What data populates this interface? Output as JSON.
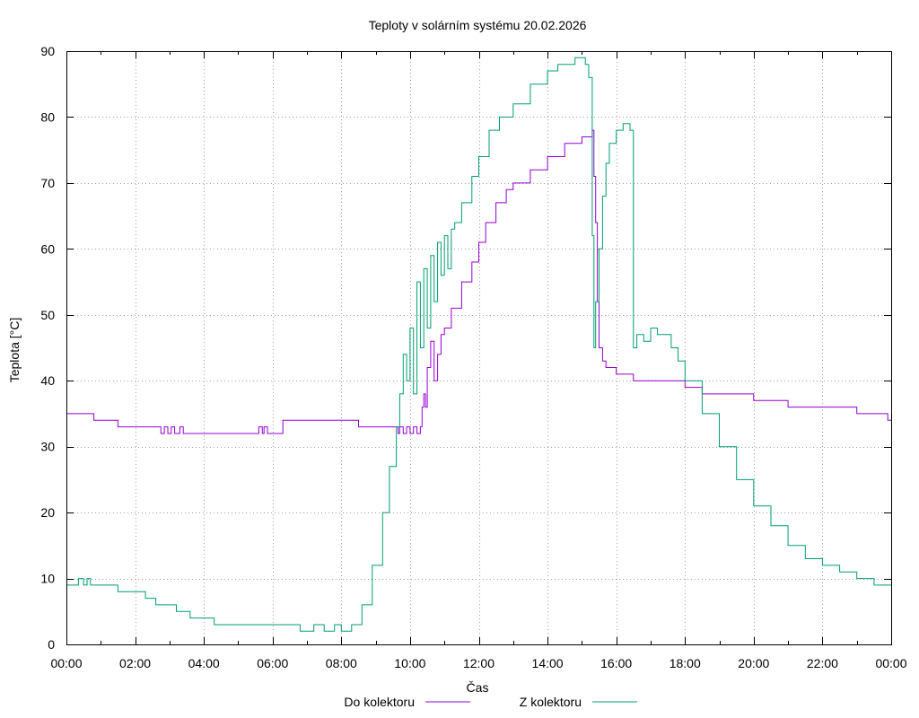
{
  "chart_data": {
    "type": "line",
    "title": "Teploty v solárním systému 20.02.2026",
    "xlabel": "Čas",
    "ylabel": "Teplota [°C]",
    "xlim": [
      0,
      24
    ],
    "ylim": [
      0,
      90
    ],
    "grid": true,
    "legend_position": "bottom-center",
    "xticks": [
      0,
      2,
      4,
      6,
      8,
      10,
      12,
      14,
      16,
      18,
      20,
      22,
      24
    ],
    "xtick_labels": [
      "00:00",
      "02:00",
      "04:00",
      "06:00",
      "08:00",
      "10:00",
      "12:00",
      "14:00",
      "16:00",
      "18:00",
      "20:00",
      "22:00",
      "00:00"
    ],
    "yticks": [
      0,
      10,
      20,
      30,
      40,
      50,
      60,
      70,
      80,
      90
    ],
    "ytick_labels": [
      "0",
      "10",
      "20",
      "30",
      "40",
      "50",
      "60",
      "70",
      "80",
      "90"
    ],
    "series": [
      {
        "name": "Do kolektoru",
        "color": "#9400d3",
        "x": [
          0,
          0.8,
          0.8,
          1.5,
          1.5,
          2.6,
          2.75,
          2.85,
          2.95,
          3.05,
          3.15,
          3.3,
          3.4,
          3.4,
          5.5,
          5.6,
          5.7,
          5.75,
          5.85,
          6.3,
          6.3,
          8.5,
          8.5,
          9.6,
          9.65,
          9.7,
          9.8,
          9.9,
          10.0,
          10.1,
          10.2,
          10.3,
          10.35,
          10.4,
          10.45,
          10.5,
          10.6,
          10.7,
          10.8,
          10.9,
          11.0,
          11.2,
          11.5,
          11.8,
          12.0,
          12.2,
          12.5,
          12.8,
          13.0,
          13.5,
          14.0,
          14.5,
          15.0,
          15.3,
          15.35,
          15.4,
          15.45,
          15.5,
          15.6,
          15.7,
          16.0,
          16.5,
          17.0,
          17.5,
          18.0,
          18.5,
          19.0,
          20.0,
          20.5,
          21.0,
          22.0,
          23.0,
          23.9,
          24.0
        ],
        "values": [
          35,
          35,
          34,
          34,
          33,
          33,
          32,
          33,
          32,
          33,
          32,
          33,
          33,
          32,
          32,
          33,
          32,
          33,
          32,
          33,
          34,
          34,
          33,
          33,
          32,
          33,
          32,
          33,
          32,
          33,
          32,
          33,
          36,
          38,
          36,
          42,
          46,
          40,
          44,
          47,
          48,
          51,
          55,
          58,
          61,
          64,
          67,
          69,
          70,
          72,
          74,
          76,
          77,
          78,
          71,
          64,
          52,
          45,
          43,
          42,
          41,
          40,
          40,
          40,
          39,
          38,
          38,
          37,
          37,
          36,
          36,
          35,
          34,
          34
        ]
      },
      {
        "name": "Z kolektoru",
        "color": "#009e73",
        "x": [
          0,
          0.3,
          0.35,
          0.5,
          0.6,
          0.7,
          0.8,
          1.5,
          1.5,
          2.3,
          2.3,
          2.6,
          2.6,
          3.2,
          3.2,
          3.6,
          3.6,
          4.3,
          4.3,
          6.5,
          6.8,
          7.2,
          7.5,
          7.8,
          8.0,
          8.3,
          8.6,
          8.9,
          9.2,
          9.4,
          9.6,
          9.7,
          9.8,
          9.9,
          10.0,
          10.1,
          10.2,
          10.3,
          10.4,
          10.5,
          10.6,
          10.7,
          10.8,
          10.9,
          11.0,
          11.1,
          11.2,
          11.3,
          11.5,
          11.8,
          12.0,
          12.3,
          12.6,
          13.0,
          13.5,
          14.0,
          14.3,
          14.6,
          14.8,
          15.0,
          15.1,
          15.2,
          15.3,
          15.35,
          15.4,
          15.5,
          15.6,
          15.7,
          15.8,
          16.0,
          16.2,
          16.4,
          16.5,
          16.6,
          16.8,
          17.0,
          17.2,
          17.4,
          17.6,
          17.8,
          18.0,
          18.5,
          19.0,
          19.5,
          20.0,
          20.5,
          21.0,
          21.5,
          22.0,
          22.5,
          23.0,
          23.5,
          24.0
        ],
        "values": [
          9,
          9,
          10,
          9,
          10,
          9,
          9,
          9,
          8,
          8,
          7,
          7,
          6,
          6,
          5,
          5,
          4,
          4,
          3,
          3,
          2,
          3,
          2,
          3,
          2,
          3,
          6,
          12,
          20,
          27,
          33,
          38,
          44,
          40,
          48,
          38,
          55,
          45,
          57,
          48,
          59,
          52,
          61,
          56,
          62,
          57,
          63,
          64,
          67,
          71,
          74,
          78,
          80,
          82,
          85,
          87,
          88,
          88,
          89,
          89,
          88,
          86,
          62,
          45,
          52,
          60,
          68,
          73,
          76,
          78,
          79,
          78,
          45,
          47,
          46,
          48,
          47,
          47,
          45,
          43,
          40,
          35,
          30,
          25,
          21,
          18,
          15,
          13,
          12,
          11,
          10,
          9,
          9
        ]
      }
    ]
  }
}
